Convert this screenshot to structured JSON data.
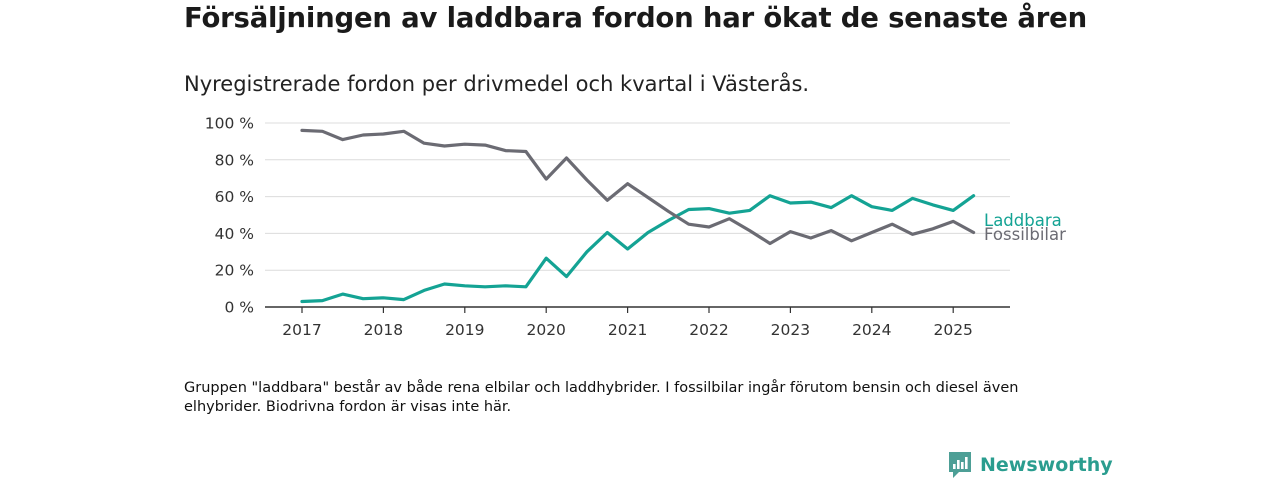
{
  "title": "Försäljningen av laddbara fordon har ökat de senaste åren",
  "subtitle": "Nyregistrerade fordon per drivmedel och kvartal i Västerås.",
  "note": "Gruppen \"laddbara\" består av både rena elbilar och laddhybrider. I fossilbilar ingår förutom bensin och diesel även elhybrider. Biodrivna fordon är visas inte här.",
  "brand": {
    "name": "Newsworthy",
    "icon": "newsworthy-logo-icon",
    "color": "#2a9d8f"
  },
  "chart_data": {
    "type": "line",
    "x": [
      "2017-Q1",
      "2017-Q2",
      "2017-Q3",
      "2017-Q4",
      "2018-Q1",
      "2018-Q2",
      "2018-Q3",
      "2018-Q4",
      "2019-Q1",
      "2019-Q2",
      "2019-Q3",
      "2019-Q4",
      "2020-Q1",
      "2020-Q2",
      "2020-Q3",
      "2020-Q4",
      "2021-Q1",
      "2021-Q2",
      "2021-Q3",
      "2021-Q4",
      "2022-Q1",
      "2022-Q2",
      "2022-Q3",
      "2022-Q4",
      "2023-Q1",
      "2023-Q2",
      "2023-Q3",
      "2023-Q4",
      "2024-Q1",
      "2024-Q2",
      "2024-Q3",
      "2024-Q4",
      "2025-Q1",
      "2025-Q2"
    ],
    "series": [
      {
        "name": "Laddbara",
        "color": "#14a394",
        "values": [
          3,
          3.5,
          7,
          4.5,
          5,
          4,
          9,
          12.5,
          11.5,
          11,
          11.5,
          11,
          26.5,
          16.5,
          30,
          40.5,
          31.5,
          40.5,
          47,
          53,
          53.5,
          51,
          52.5,
          60.5,
          56.5,
          57,
          54,
          60.5,
          54.5,
          52.5,
          59,
          55.5,
          52.5,
          60.5
        ]
      },
      {
        "name": "Fossilbilar",
        "color": "#6b6b73",
        "values": [
          96,
          95.5,
          91,
          93.5,
          94,
          95.5,
          89,
          87.5,
          88.5,
          88,
          85,
          84.5,
          69.5,
          81,
          69,
          58,
          67,
          59.5,
          52,
          45,
          43.5,
          48,
          41.5,
          34.5,
          41,
          37.5,
          41.5,
          36,
          40.5,
          45,
          39.5,
          42.5,
          46.5,
          40.5
        ]
      }
    ],
    "x_tick_labels": [
      "2017",
      "2018",
      "2019",
      "2020",
      "2021",
      "2022",
      "2023",
      "2024",
      "2025"
    ],
    "y_tick_labels": [
      "0 %",
      "20 %",
      "40 %",
      "60 %",
      "80 %",
      "100 %"
    ],
    "y_ticks": [
      0,
      20,
      40,
      60,
      80,
      100
    ],
    "ylim": [
      0,
      100
    ],
    "xlabel": "",
    "ylabel": "",
    "grid": true,
    "legend": "direct labels at line ends"
  }
}
